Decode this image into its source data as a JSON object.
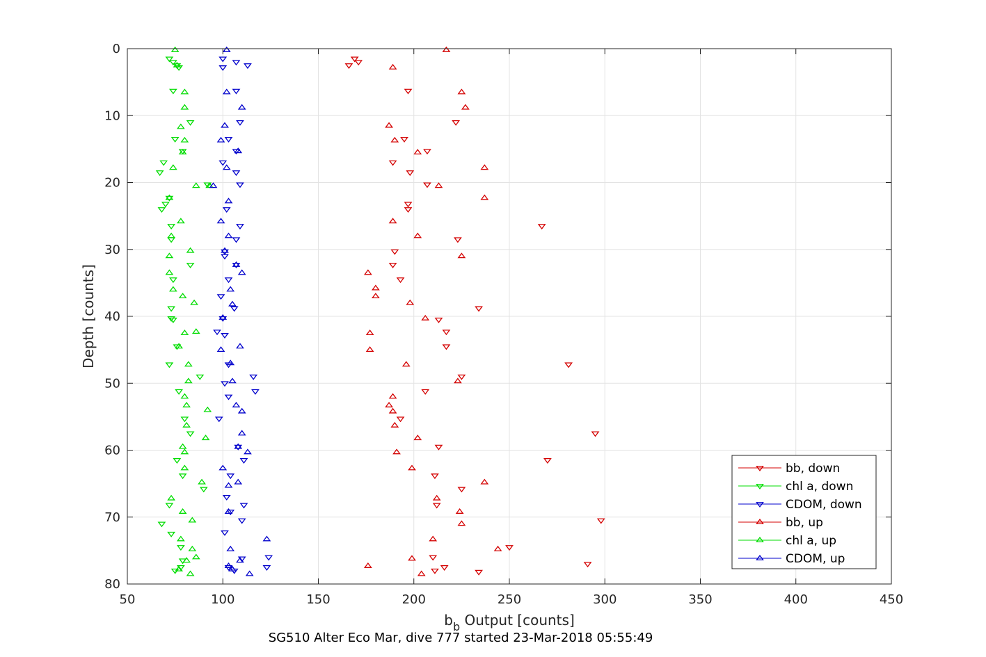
{
  "chart_data": {
    "type": "scatter",
    "title": "SG510 Alter Eco Mar, dive 777 started 23-Mar-2018 05:55:49",
    "xlabel": {
      "main": "b",
      "sub": "b",
      "rest": " Output [counts]"
    },
    "ylabel": "Depth [counts]",
    "xlim": [
      50,
      450
    ],
    "ylim": [
      0,
      80
    ],
    "y_reversed": true,
    "grid": true,
    "legend_position": "bottom-right",
    "xticks": [
      50,
      100,
      150,
      200,
      250,
      300,
      350,
      400,
      450
    ],
    "yticks": [
      0,
      10,
      20,
      30,
      40,
      50,
      60,
      70,
      80
    ],
    "series": [
      {
        "name": "bb, down",
        "color": "#d40000",
        "marker": "triangle-down",
        "points": [
          [
            169,
            1.5
          ],
          [
            171,
            2
          ],
          [
            166,
            2.5
          ],
          [
            197,
            6.3
          ],
          [
            222,
            11
          ],
          [
            195,
            13.5
          ],
          [
            207,
            15.3
          ],
          [
            189,
            17
          ],
          [
            198,
            18.5
          ],
          [
            207,
            20.3
          ],
          [
            197,
            23.2
          ],
          [
            197,
            24
          ],
          [
            267,
            26.5
          ],
          [
            223,
            28.5
          ],
          [
            190,
            30.3
          ],
          [
            189,
            32.3
          ],
          [
            193,
            34.5
          ],
          [
            234,
            38.8
          ],
          [
            213,
            40.5
          ],
          [
            217,
            42.3
          ],
          [
            217,
            44.5
          ],
          [
            281,
            47.2
          ],
          [
            225,
            49
          ],
          [
            206,
            51.2
          ],
          [
            193,
            55.3
          ],
          [
            295,
            57.5
          ],
          [
            213,
            59.5
          ],
          [
            270,
            61.5
          ],
          [
            211,
            63.8
          ],
          [
            225,
            65.8
          ],
          [
            212,
            68.2
          ],
          [
            298,
            70.5
          ],
          [
            250,
            74.5
          ],
          [
            210,
            76
          ],
          [
            291,
            77
          ],
          [
            216,
            77.5
          ],
          [
            211,
            78
          ],
          [
            234,
            78.2
          ]
        ]
      },
      {
        "name": "chl a, down",
        "color": "#00dd00",
        "marker": "triangle-down",
        "points": [
          [
            72,
            1.5
          ],
          [
            74,
            2
          ],
          [
            76,
            2.5
          ],
          [
            77,
            2.8
          ],
          [
            74,
            6.3
          ],
          [
            83,
            11
          ],
          [
            75,
            13.5
          ],
          [
            79,
            15.3
          ],
          [
            69,
            17
          ],
          [
            67,
            18.5
          ],
          [
            92,
            20.3
          ],
          [
            72,
            22.3
          ],
          [
            70,
            23.2
          ],
          [
            68,
            24
          ],
          [
            73,
            26.5
          ],
          [
            73,
            28.5
          ],
          [
            83,
            32.3
          ],
          [
            74,
            34.5
          ],
          [
            73,
            38.8
          ],
          [
            74,
            40.5
          ],
          [
            73,
            40.3
          ],
          [
            76,
            44.5
          ],
          [
            72,
            47.2
          ],
          [
            88,
            49
          ],
          [
            77,
            51.2
          ],
          [
            80,
            55.3
          ],
          [
            83,
            57.5
          ],
          [
            76,
            61.5
          ],
          [
            79,
            63.8
          ],
          [
            90,
            65.8
          ],
          [
            72,
            68.2
          ],
          [
            68,
            71
          ],
          [
            73,
            72.5
          ],
          [
            78,
            74.5
          ],
          [
            79,
            76.5
          ],
          [
            78,
            77.5
          ],
          [
            75,
            78
          ]
        ]
      },
      {
        "name": "CDOM, down",
        "color": "#0000cc",
        "marker": "triangle-down",
        "points": [
          [
            100,
            1.5
          ],
          [
            107,
            2
          ],
          [
            113,
            2.5
          ],
          [
            100,
            2.8
          ],
          [
            107,
            6.3
          ],
          [
            109,
            11
          ],
          [
            103,
            13.5
          ],
          [
            107,
            15.3
          ],
          [
            100,
            17
          ],
          [
            107,
            18.5
          ],
          [
            109,
            20.3
          ],
          [
            102,
            24
          ],
          [
            109,
            26.5
          ],
          [
            107,
            28.5
          ],
          [
            101,
            30.3
          ],
          [
            101,
            31
          ],
          [
            107,
            32.3
          ],
          [
            103,
            34.5
          ],
          [
            99,
            37
          ],
          [
            106,
            38.8
          ],
          [
            100,
            40.3
          ],
          [
            97,
            42.3
          ],
          [
            101,
            42.8
          ],
          [
            103,
            47.2
          ],
          [
            116,
            49
          ],
          [
            101,
            50
          ],
          [
            117,
            51.2
          ],
          [
            103,
            52
          ],
          [
            98,
            55.3
          ],
          [
            108,
            59.5
          ],
          [
            111,
            61.5
          ],
          [
            104,
            63.8
          ],
          [
            102,
            67
          ],
          [
            111,
            68.2
          ],
          [
            104,
            69.2
          ],
          [
            110,
            70.5
          ],
          [
            101,
            72.3
          ],
          [
            110,
            76.2
          ],
          [
            124,
            76
          ],
          [
            123,
            77.5
          ],
          [
            103,
            77.5
          ],
          [
            106,
            78
          ]
        ]
      },
      {
        "name": "bb, up",
        "color": "#d40000",
        "marker": "triangle-up",
        "points": [
          [
            217,
            0.2
          ],
          [
            189,
            2.8
          ],
          [
            225,
            6.5
          ],
          [
            227,
            8.8
          ],
          [
            187,
            11.5
          ],
          [
            190,
            13.7
          ],
          [
            202,
            15.5
          ],
          [
            237,
            17.8
          ],
          [
            213,
            20.5
          ],
          [
            237,
            22.3
          ],
          [
            189,
            25.8
          ],
          [
            202,
            28
          ],
          [
            225,
            31
          ],
          [
            176,
            33.5
          ],
          [
            180,
            35.8
          ],
          [
            180,
            37
          ],
          [
            198,
            38
          ],
          [
            206,
            40.3
          ],
          [
            177,
            42.5
          ],
          [
            177,
            45
          ],
          [
            196,
            47.2
          ],
          [
            223,
            49.7
          ],
          [
            189,
            52
          ],
          [
            187,
            53.3
          ],
          [
            189,
            54.2
          ],
          [
            190,
            56.3
          ],
          [
            202,
            58.2
          ],
          [
            191,
            60.3
          ],
          [
            199,
            62.7
          ],
          [
            237,
            64.8
          ],
          [
            212,
            67.2
          ],
          [
            224,
            69.2
          ],
          [
            225,
            71
          ],
          [
            210,
            73.3
          ],
          [
            244,
            74.8
          ],
          [
            199,
            76.2
          ],
          [
            176,
            77.3
          ],
          [
            204,
            78.5
          ]
        ]
      },
      {
        "name": "chl a, up",
        "color": "#00dd00",
        "marker": "triangle-up",
        "points": [
          [
            75,
            0.2
          ],
          [
            76,
            2.5
          ],
          [
            80,
            6.5
          ],
          [
            80,
            8.8
          ],
          [
            78,
            11.7
          ],
          [
            80,
            13.7
          ],
          [
            79,
            15.5
          ],
          [
            74,
            17.8
          ],
          [
            86,
            20.5
          ],
          [
            93,
            20.5
          ],
          [
            72,
            22.3
          ],
          [
            78,
            25.8
          ],
          [
            73,
            28
          ],
          [
            83,
            30.2
          ],
          [
            72,
            31
          ],
          [
            72,
            33.5
          ],
          [
            74,
            36
          ],
          [
            79,
            37
          ],
          [
            85,
            38
          ],
          [
            80,
            42.5
          ],
          [
            86,
            42.3
          ],
          [
            77,
            44.5
          ],
          [
            82,
            47.2
          ],
          [
            82,
            49.7
          ],
          [
            80,
            52
          ],
          [
            81,
            53.3
          ],
          [
            92,
            54
          ],
          [
            81,
            56.3
          ],
          [
            91,
            58.2
          ],
          [
            79,
            59.5
          ],
          [
            80,
            60.3
          ],
          [
            80,
            62.7
          ],
          [
            89,
            64.8
          ],
          [
            73,
            67.2
          ],
          [
            79,
            69.2
          ],
          [
            84,
            70.5
          ],
          [
            78,
            73.3
          ],
          [
            84,
            74.8
          ],
          [
            86,
            76
          ],
          [
            81,
            76.5
          ],
          [
            77,
            77.8
          ],
          [
            83,
            78.5
          ]
        ]
      },
      {
        "name": "CDOM, up",
        "color": "#0000cc",
        "marker": "triangle-up",
        "points": [
          [
            102,
            0.2
          ],
          [
            102,
            6.5
          ],
          [
            110,
            8.8
          ],
          [
            101,
            11.5
          ],
          [
            99,
            13.7
          ],
          [
            108,
            15.3
          ],
          [
            102,
            17.8
          ],
          [
            95,
            20.5
          ],
          [
            103,
            22.8
          ],
          [
            99,
            25.8
          ],
          [
            103,
            28
          ],
          [
            101,
            30.2
          ],
          [
            107,
            32.3
          ],
          [
            110,
            33.5
          ],
          [
            104,
            36
          ],
          [
            105,
            38.2
          ],
          [
            100,
            40.2
          ],
          [
            109,
            44.5
          ],
          [
            99,
            45
          ],
          [
            104,
            47
          ],
          [
            105,
            49.7
          ],
          [
            107,
            53.3
          ],
          [
            110,
            54.2
          ],
          [
            110,
            57.5
          ],
          [
            108,
            59.5
          ],
          [
            113,
            60.3
          ],
          [
            100,
            62.7
          ],
          [
            108,
            64.8
          ],
          [
            103,
            65.3
          ],
          [
            103,
            69.2
          ],
          [
            123,
            73.3
          ],
          [
            104,
            74.8
          ],
          [
            109,
            76.5
          ],
          [
            103,
            77.3
          ],
          [
            105,
            77.8
          ],
          [
            114,
            78.5
          ]
        ]
      }
    ]
  }
}
